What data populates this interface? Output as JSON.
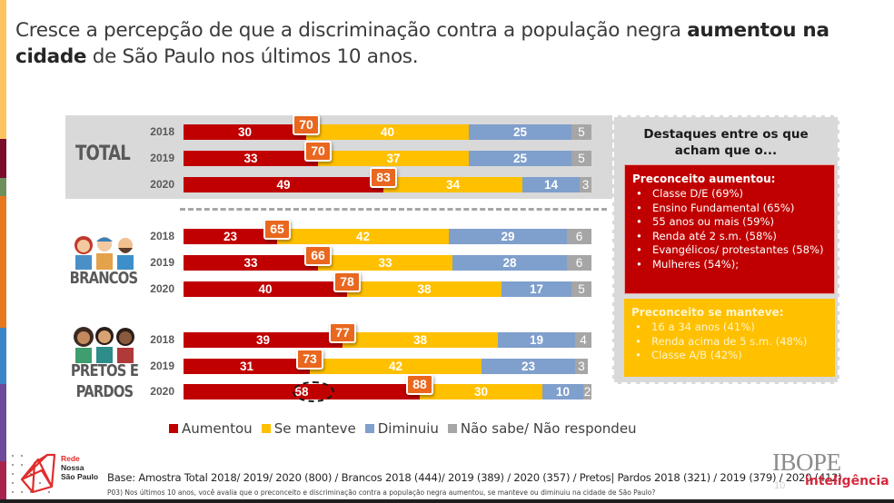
{
  "title": {
    "pre": "Cresce a percepção de que a discriminação contra a população negra ",
    "bold": "aumentou na cidade",
    "post": " de São Paulo nos últimos 10 anos."
  },
  "colors": {
    "aumentou": "#c00000",
    "se_manteve": "#ffc000",
    "diminuiu": "#7f9fcc",
    "nao_sabe": "#a6a6a6",
    "callout": "#e9671f"
  },
  "chart_data": {
    "type": "bar",
    "orientation": "horizontal-stacked-100",
    "title": "Cresce a percepção de que a discriminação contra a população negra aumentou na cidade de São Paulo nos últimos 10 anos.",
    "xlabel": "",
    "ylabel": "",
    "xlim": [
      0,
      100
    ],
    "legend": {
      "position": "bottom",
      "entries": [
        "Aumentou",
        "Se manteve",
        "Diminuiu",
        "Não sabe/ Não respondeu"
      ]
    },
    "series_names": [
      "Aumentou",
      "Se manteve",
      "Diminuiu",
      "Não sabe/ Não respondeu"
    ],
    "groups": [
      {
        "name": "TOTAL",
        "rows": [
          {
            "year": "2018",
            "values": [
              30,
              40,
              25,
              5
            ],
            "callout": 70
          },
          {
            "year": "2019",
            "values": [
              33,
              37,
              25,
              5
            ],
            "callout": 70
          },
          {
            "year": "2020",
            "values": [
              49,
              34,
              14,
              3
            ],
            "callout": 83
          }
        ]
      },
      {
        "name": "BRANCOS",
        "rows": [
          {
            "year": "2018",
            "values": [
              23,
              42,
              29,
              6
            ],
            "callout": 65
          },
          {
            "year": "2019",
            "values": [
              33,
              33,
              28,
              6
            ],
            "callout": 66
          },
          {
            "year": "2020",
            "values": [
              40,
              38,
              17,
              5
            ],
            "callout": 78
          }
        ]
      },
      {
        "name": "PRETOS E PARDOS",
        "rows": [
          {
            "year": "2018",
            "values": [
              39,
              38,
              19,
              4
            ],
            "callout": 77
          },
          {
            "year": "2019",
            "values": [
              31,
              42,
              23,
              3
            ],
            "callout": 73
          },
          {
            "year": "2020",
            "values": [
              58,
              30,
              10,
              2
            ],
            "callout": 88,
            "highlighted": true
          }
        ]
      }
    ],
    "callout_meaning": "Aumentou + Se manteve"
  },
  "group_labels": {
    "total": "TOTAL",
    "brancos": "BRANCOS",
    "pretos_line1": "PRETOS E",
    "pretos_line2": "PARDOS"
  },
  "panel": {
    "title_line1": "Destaques entre os que",
    "title_line2": "acham que o...",
    "aumentou": {
      "heading": "Preconceito aumentou:",
      "items": [
        "Classe D/E (69%)",
        "Ensino Fundamental (65%)",
        "55 anos ou mais (59%)",
        "Renda até 2 s.m. (58%)",
        "Evangélicos/ protestantes (58%)",
        "Mulheres (54%);"
      ]
    },
    "manteve": {
      "heading": "Preconceito se manteve:",
      "items": [
        "16 a 34 anos (41%)",
        "Renda acima de 5 s.m. (48%)",
        "Classe A/B (42%)"
      ]
    }
  },
  "footer": {
    "base": "Base: Amostra Total 2018/ 2019/ 2020 (800) / Brancos  2018 (444)/ 2019 (389) / 2020 (357) / Pretos| Pardos 2018 (321) / 2019 (379) / 2020 (412)",
    "question": "P03) Nos últimos 10 anos, você avalia que o preconceito e discriminação contra a população negra aumentou, se manteve ou diminuiu na cidade de São Paulo?",
    "page_number": "10"
  },
  "logos": {
    "rede_line1": "Rede",
    "rede_line2": "Nossa",
    "rede_line3": "São Paulo",
    "ibope": "IBOPE",
    "ibope_sub": "inteligência"
  }
}
